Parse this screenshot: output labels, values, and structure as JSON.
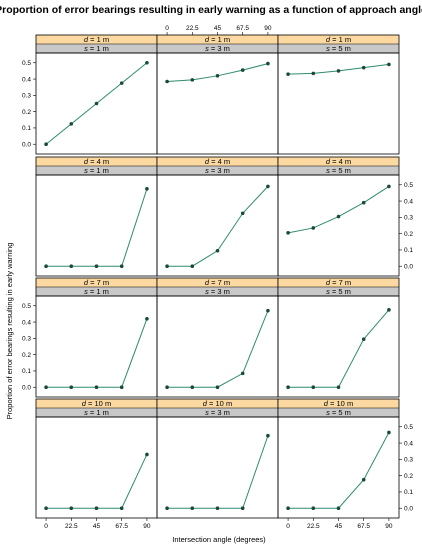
{
  "chart_data": {
    "type": "line",
    "title": "Proportion of error bearings resulting in early warning as a function of approach angle",
    "xlabel": "Intersection angle (degrees)",
    "ylabel": "Proportion of error bearings resulting in early warning",
    "x": [
      0,
      22.5,
      45,
      67.5,
      90
    ],
    "x_tick_labels": [
      "0",
      "22.5",
      "45",
      "67.5",
      "90"
    ],
    "xlim": [
      -9,
      99
    ],
    "ylim": [
      -0.06,
      0.56
    ],
    "y_ticks": [
      0.0,
      0.1,
      0.2,
      0.3,
      0.4,
      0.5
    ],
    "y_tick_labels": [
      "0.0",
      "0.1",
      "0.2",
      "0.3",
      "0.4",
      "0.5"
    ],
    "grid": false,
    "panels": [
      {
        "d_label": "d",
        "d_value": " = 1 m",
        "s_label": "s",
        "s_value": " = 1 m",
        "values": [
          0.0,
          0.125,
          0.25,
          0.375,
          0.5
        ]
      },
      {
        "d_label": "d",
        "d_value": " = 1 m",
        "s_label": "s",
        "s_value": " = 3 m",
        "values": [
          0.385,
          0.395,
          0.42,
          0.455,
          0.495
        ]
      },
      {
        "d_label": "d",
        "d_value": " = 1 m",
        "s_label": "s",
        "s_value": " = 5 m",
        "values": [
          0.43,
          0.435,
          0.45,
          0.47,
          0.49
        ]
      },
      {
        "d_label": "d",
        "d_value": " = 4 m",
        "s_label": "s",
        "s_value": " = 1 m",
        "values": [
          0.0,
          0.0,
          0.0,
          0.0,
          0.475
        ]
      },
      {
        "d_label": "d",
        "d_value": " = 4 m",
        "s_label": "s",
        "s_value": " = 3 m",
        "values": [
          0.0,
          0.0,
          0.095,
          0.325,
          0.49
        ]
      },
      {
        "d_label": "d",
        "d_value": " = 4 m",
        "s_label": "s",
        "s_value": " = 5 m",
        "values": [
          0.205,
          0.235,
          0.305,
          0.39,
          0.49
        ]
      },
      {
        "d_label": "d",
        "d_value": " = 7 m",
        "s_label": "s",
        "s_value": " = 1 m",
        "values": [
          0.0,
          0.0,
          0.0,
          0.0,
          0.42
        ]
      },
      {
        "d_label": "d",
        "d_value": " = 7 m",
        "s_label": "s",
        "s_value": " = 3 m",
        "values": [
          0.0,
          0.0,
          0.0,
          0.085,
          0.47
        ]
      },
      {
        "d_label": "d",
        "d_value": " = 7 m",
        "s_label": "s",
        "s_value": " = 5 m",
        "values": [
          0.0,
          0.0,
          0.0,
          0.295,
          0.475
        ]
      },
      {
        "d_label": "d",
        "d_value": " = 10 m",
        "s_label": "s",
        "s_value": " = 1 m",
        "values": [
          0.0,
          0.0,
          0.0,
          0.0,
          0.33
        ]
      },
      {
        "d_label": "d",
        "d_value": " = 10 m",
        "s_label": "s",
        "s_value": " = 3 m",
        "values": [
          0.0,
          0.0,
          0.0,
          0.0,
          0.445
        ]
      },
      {
        "d_label": "d",
        "d_value": " = 10 m",
        "s_label": "s",
        "s_value": " = 5 m",
        "values": [
          0.0,
          0.0,
          0.0,
          0.175,
          0.465
        ]
      }
    ]
  }
}
